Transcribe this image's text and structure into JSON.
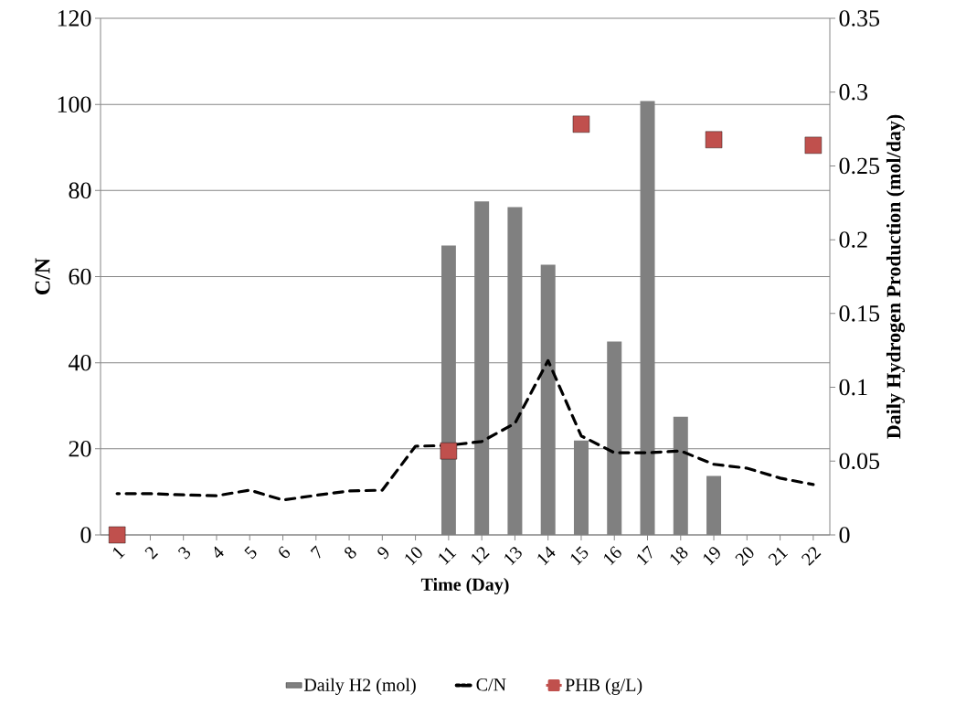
{
  "chart_data": {
    "type": "bar",
    "xlabel": "Time (Day)",
    "ylabel": "C/N",
    "y2label": "Daily Hydrogen Production (mol/day)",
    "categories": [
      "1",
      "2",
      "3",
      "4",
      "5",
      "6",
      "7",
      "8",
      "9",
      "10",
      "11",
      "12",
      "13",
      "14",
      "15",
      "16",
      "17",
      "18",
      "19",
      "20",
      "21",
      "22"
    ],
    "series": [
      {
        "name": "Daily H2 (mol)",
        "type": "bar",
        "axis": "y2",
        "color": "#808080",
        "values": [
          null,
          null,
          null,
          null,
          null,
          null,
          null,
          null,
          null,
          null,
          0.196,
          0.226,
          0.222,
          0.183,
          0.064,
          0.131,
          0.294,
          0.08,
          0.04,
          null,
          null,
          null
        ]
      },
      {
        "name": "C/N",
        "type": "line",
        "color": "#000000",
        "line_style": "dashed",
        "marker": "none",
        "values": [
          9.6,
          9.6,
          9.3,
          9.1,
          10.4,
          8.1,
          9.2,
          10.2,
          10.4,
          20.6,
          20.8,
          21.7,
          25.9,
          40.5,
          23,
          19.1,
          19.1,
          19.5,
          16.4,
          15.5,
          13.2,
          11.7
        ]
      },
      {
        "name": "PHB (g/L)",
        "type": "scatter",
        "color": "#c0504d",
        "marker": "square",
        "values": [
          0,
          null,
          null,
          null,
          null,
          null,
          null,
          null,
          null,
          null,
          19.5,
          null,
          null,
          null,
          95.4,
          null,
          null,
          null,
          91.8,
          null,
          null,
          90.5
        ]
      }
    ],
    "ylim": [
      0,
      120
    ],
    "yticks": [
      0,
      20,
      40,
      60,
      80,
      100,
      120
    ],
    "y2lim": [
      0,
      0.35
    ],
    "y2ticks": [
      0,
      0.05,
      0.1,
      0.15,
      0.2,
      0.25,
      0.3,
      0.35
    ],
    "grid": "y",
    "legend": "bottom"
  }
}
